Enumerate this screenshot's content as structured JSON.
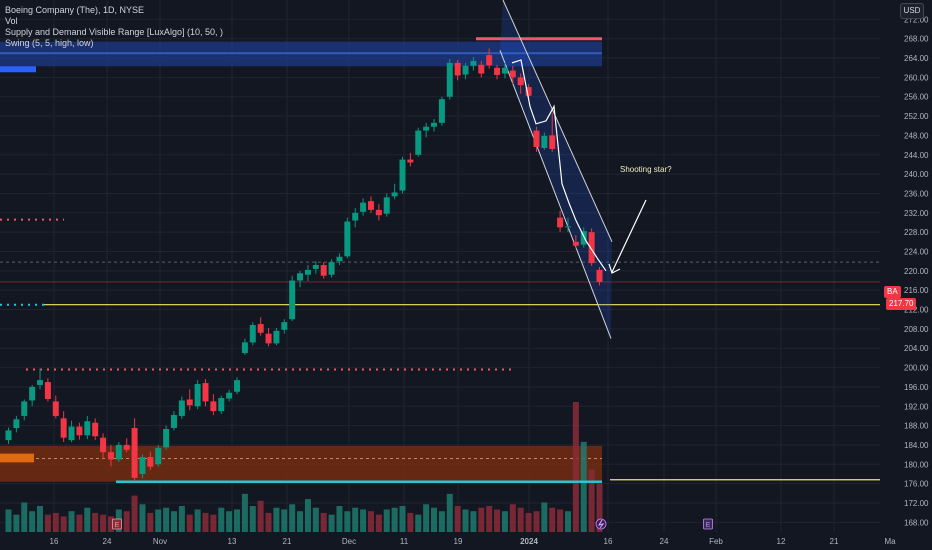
{
  "header": {
    "title": "Boeing Company (The), 1D, NYSE",
    "indicators": [
      "Vol",
      "Supply and Demand Visible Range [LuxAlgo] (10, 50, )",
      "Swing (5, 5, high, low)"
    ],
    "currency": "USD"
  },
  "price_tag": {
    "symbol": "BA",
    "value": "217.70"
  },
  "annotation": "Shooting star?",
  "earnings_marker": "E",
  "chart_data": {
    "type": "candlestick",
    "title": "Boeing Company (The), 1D, NYSE",
    "ylim": [
      166,
      276
    ],
    "y_ticks": [
      168,
      172,
      176,
      180,
      184,
      188,
      192,
      196,
      200,
      204,
      208,
      212,
      216,
      220,
      224,
      228,
      232,
      236,
      240,
      244,
      248,
      252,
      256,
      260,
      264,
      268,
      272
    ],
    "x_ticks": [
      "16",
      "24",
      "Nov",
      "13",
      "21",
      "Dec",
      "11",
      "19",
      "2024",
      "16",
      "24",
      "Feb",
      "12",
      "21",
      "Ma"
    ],
    "last_price": 217.7,
    "candles": [
      {
        "o": 185.0,
        "h": 187.6,
        "l": 184.2,
        "c": 187.0
      },
      {
        "o": 187.5,
        "h": 190.0,
        "l": 186.6,
        "c": 189.3
      },
      {
        "o": 190.0,
        "h": 193.4,
        "l": 189.1,
        "c": 193.0
      },
      {
        "o": 193.2,
        "h": 196.4,
        "l": 192.0,
        "c": 196.0
      },
      {
        "o": 196.4,
        "h": 199.8,
        "l": 195.5,
        "c": 197.4
      },
      {
        "o": 197.0,
        "h": 197.8,
        "l": 193.0,
        "c": 193.5
      },
      {
        "o": 193.0,
        "h": 194.2,
        "l": 189.5,
        "c": 190.0
      },
      {
        "o": 189.5,
        "h": 191.0,
        "l": 184.6,
        "c": 185.5
      },
      {
        "o": 185.0,
        "h": 189.0,
        "l": 184.6,
        "c": 187.8
      },
      {
        "o": 187.8,
        "h": 188.6,
        "l": 185.1,
        "c": 186.0
      },
      {
        "o": 186.0,
        "h": 190.0,
        "l": 185.2,
        "c": 188.9
      },
      {
        "o": 188.6,
        "h": 189.5,
        "l": 185.0,
        "c": 185.8
      },
      {
        "o": 185.5,
        "h": 186.4,
        "l": 181.0,
        "c": 182.5
      },
      {
        "o": 182.5,
        "h": 184.0,
        "l": 179.6,
        "c": 181.0
      },
      {
        "o": 181.0,
        "h": 184.6,
        "l": 180.5,
        "c": 184.0
      },
      {
        "o": 184.0,
        "h": 185.4,
        "l": 182.5,
        "c": 183.0
      },
      {
        "o": 187.5,
        "h": 189.5,
        "l": 176.5,
        "c": 177.2
      },
      {
        "o": 178.0,
        "h": 182.0,
        "l": 177.1,
        "c": 181.5
      },
      {
        "o": 181.5,
        "h": 182.6,
        "l": 178.8,
        "c": 179.5
      },
      {
        "o": 180.0,
        "h": 184.0,
        "l": 179.5,
        "c": 183.4
      },
      {
        "o": 183.5,
        "h": 188.0,
        "l": 183.0,
        "c": 187.3
      },
      {
        "o": 187.5,
        "h": 191.0,
        "l": 187.0,
        "c": 190.2
      },
      {
        "o": 190.0,
        "h": 194.0,
        "l": 189.4,
        "c": 193.2
      },
      {
        "o": 193.4,
        "h": 195.5,
        "l": 191.2,
        "c": 192.2
      },
      {
        "o": 192.0,
        "h": 197.4,
        "l": 191.4,
        "c": 196.6
      },
      {
        "o": 196.8,
        "h": 197.6,
        "l": 192.0,
        "c": 193.0
      },
      {
        "o": 193.0,
        "h": 194.5,
        "l": 190.2,
        "c": 191.0
      },
      {
        "o": 191.0,
        "h": 194.2,
        "l": 190.4,
        "c": 193.7
      },
      {
        "o": 193.6,
        "h": 195.4,
        "l": 193.0,
        "c": 194.8
      },
      {
        "o": 195.0,
        "h": 198.0,
        "l": 194.5,
        "c": 197.4
      },
      {
        "o": 203.0,
        "h": 206.0,
        "l": 202.6,
        "c": 205.2
      },
      {
        "o": 205.2,
        "h": 209.4,
        "l": 204.6,
        "c": 208.8
      },
      {
        "o": 209.0,
        "h": 210.4,
        "l": 206.6,
        "c": 207.2
      },
      {
        "o": 207.0,
        "h": 208.2,
        "l": 204.4,
        "c": 205.0
      },
      {
        "o": 205.0,
        "h": 208.2,
        "l": 204.6,
        "c": 207.6
      },
      {
        "o": 207.8,
        "h": 210.0,
        "l": 207.0,
        "c": 209.4
      },
      {
        "o": 210.0,
        "h": 219.0,
        "l": 209.6,
        "c": 218.0
      },
      {
        "o": 218.0,
        "h": 220.0,
        "l": 216.6,
        "c": 219.5
      },
      {
        "o": 219.2,
        "h": 221.2,
        "l": 217.9,
        "c": 220.2
      },
      {
        "o": 220.4,
        "h": 222.0,
        "l": 219.4,
        "c": 221.2
      },
      {
        "o": 221.2,
        "h": 221.8,
        "l": 218.4,
        "c": 219.0
      },
      {
        "o": 219.2,
        "h": 222.4,
        "l": 218.6,
        "c": 221.8
      },
      {
        "o": 222.0,
        "h": 223.6,
        "l": 221.2,
        "c": 222.9
      },
      {
        "o": 223.0,
        "h": 231.0,
        "l": 222.6,
        "c": 230.2
      },
      {
        "o": 230.4,
        "h": 233.0,
        "l": 229.0,
        "c": 232.0
      },
      {
        "o": 232.2,
        "h": 235.0,
        "l": 231.4,
        "c": 234.1
      },
      {
        "o": 234.4,
        "h": 235.4,
        "l": 232.0,
        "c": 232.6
      },
      {
        "o": 232.6,
        "h": 233.8,
        "l": 230.4,
        "c": 231.5
      },
      {
        "o": 231.8,
        "h": 236.0,
        "l": 231.2,
        "c": 235.2
      },
      {
        "o": 235.4,
        "h": 238.0,
        "l": 234.8,
        "c": 236.2
      },
      {
        "o": 236.6,
        "h": 243.6,
        "l": 236.0,
        "c": 243.0
      },
      {
        "o": 243.0,
        "h": 244.4,
        "l": 241.6,
        "c": 242.4
      },
      {
        "o": 244.0,
        "h": 249.6,
        "l": 243.6,
        "c": 249.0
      },
      {
        "o": 249.0,
        "h": 250.6,
        "l": 247.6,
        "c": 249.8
      },
      {
        "o": 249.8,
        "h": 251.4,
        "l": 248.8,
        "c": 250.6
      },
      {
        "o": 250.6,
        "h": 256.0,
        "l": 250.0,
        "c": 255.5
      },
      {
        "o": 256.0,
        "h": 263.8,
        "l": 255.4,
        "c": 263.0
      },
      {
        "o": 263.0,
        "h": 263.6,
        "l": 259.4,
        "c": 260.4
      },
      {
        "o": 260.6,
        "h": 263.0,
        "l": 259.6,
        "c": 262.4
      },
      {
        "o": 262.4,
        "h": 264.2,
        "l": 261.4,
        "c": 263.4
      },
      {
        "o": 262.6,
        "h": 263.4,
        "l": 260.0,
        "c": 260.8
      },
      {
        "o": 264.6,
        "h": 266.0,
        "l": 261.8,
        "c": 262.5
      },
      {
        "o": 262.0,
        "h": 262.6,
        "l": 259.6,
        "c": 260.5
      },
      {
        "o": 260.8,
        "h": 263.0,
        "l": 259.8,
        "c": 262.0
      },
      {
        "o": 261.4,
        "h": 262.4,
        "l": 258.6,
        "c": 260.0
      },
      {
        "o": 260.0,
        "h": 260.8,
        "l": 256.6,
        "c": 258.4
      },
      {
        "o": 258.0,
        "h": 258.6,
        "l": 255.4,
        "c": 256.2
      },
      {
        "o": 249.0,
        "h": 249.8,
        "l": 244.6,
        "c": 245.6
      },
      {
        "o": 245.4,
        "h": 248.6,
        "l": 245.0,
        "c": 247.9
      },
      {
        "o": 248.0,
        "h": 252.6,
        "l": 244.6,
        "c": 245.2
      },
      {
        "o": 231.0,
        "h": 232.4,
        "l": 228.0,
        "c": 229.0
      },
      {
        "o": 229.0,
        "h": 231.0,
        "l": 228.0,
        "c": 229.2
      },
      {
        "o": 226.0,
        "h": 227.4,
        "l": 224.6,
        "c": 225.2
      },
      {
        "o": 225.4,
        "h": 229.0,
        "l": 224.8,
        "c": 228.2
      },
      {
        "o": 228.0,
        "h": 228.8,
        "l": 221.0,
        "c": 221.6
      },
      {
        "o": 220.2,
        "h": 220.8,
        "l": 217.0,
        "c": 217.7
      }
    ],
    "volume": [
      13,
      10,
      17,
      12,
      15,
      10,
      11,
      9,
      12,
      10,
      14,
      11,
      10,
      9,
      13,
      12,
      21,
      16,
      11,
      13,
      14,
      12,
      15,
      10,
      13,
      11,
      10,
      14,
      12,
      13,
      22,
      15,
      18,
      11,
      14,
      13,
      16,
      12,
      19,
      14,
      11,
      10,
      15,
      12,
      14,
      13,
      12,
      10,
      13,
      14,
      15,
      11,
      10,
      16,
      14,
      12,
      22,
      15,
      13,
      12,
      14,
      15,
      13,
      12,
      16,
      14,
      11,
      12,
      17,
      14,
      13,
      12,
      75,
      52,
      36,
      28
    ],
    "supply_zone": {
      "top": 267.4,
      "bottom": 262.3
    },
    "demand_zone": {
      "top": 183.8,
      "bottom": 176.4
    },
    "swing_high_levels": [
      268.0,
      230.6,
      199.6
    ],
    "swing_low_levels": [
      213.0,
      176.4
    ],
    "horizontal_lines": [
      213.0,
      176.8
    ],
    "channel_upper": {
      "from": [
        258,
        276.0
      ],
      "to": [
        290,
        226.0
      ]
    },
    "channel_lower": {
      "from": [
        246,
        265.6
      ],
      "to": [
        290,
        206.0
      ]
    }
  }
}
